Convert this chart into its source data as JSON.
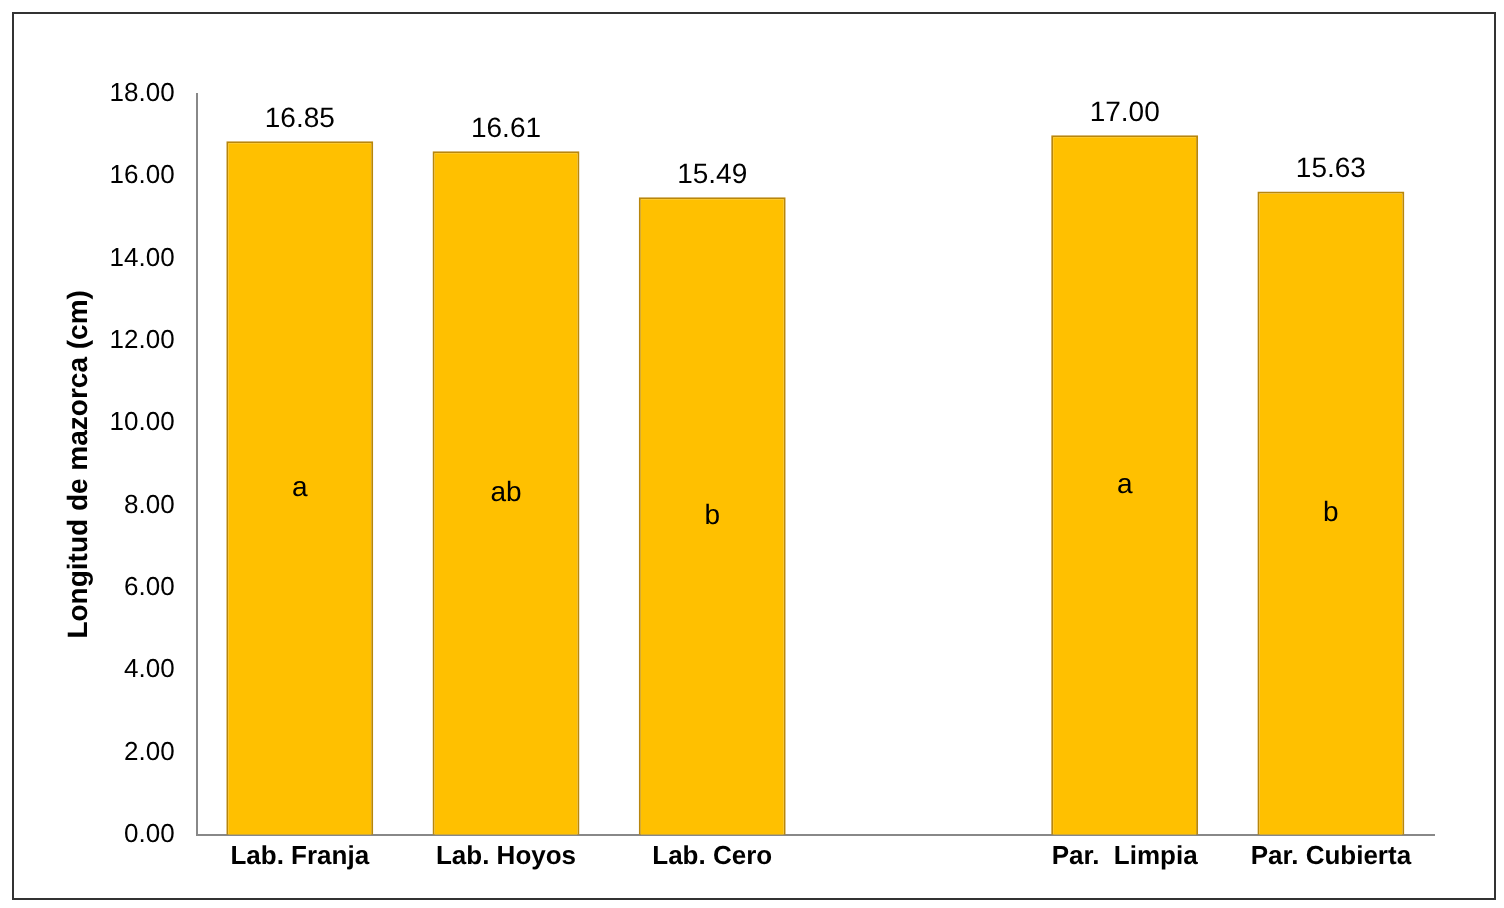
{
  "chart_data": {
    "type": "bar",
    "ylabel": "Longitud de mazorca (cm)",
    "categories": [
      "Lab. Franja",
      "Lab. Hoyos",
      "Lab. Cero",
      null,
      "Par.  Limpia",
      "Par. Cubierta"
    ],
    "values": [
      16.85,
      16.61,
      15.49,
      null,
      17.0,
      15.63
    ],
    "value_labels": [
      "16.85",
      "16.61",
      "15.49",
      null,
      "17.00",
      "15.63"
    ],
    "color": "#ffc000",
    "ylim": [
      0,
      18
    ],
    "yticks": [
      {
        "value": 0,
        "label": "0.00"
      },
      {
        "value": 2,
        "label": "2.00"
      },
      {
        "value": 4,
        "label": "4.00"
      },
      {
        "value": 6,
        "label": "6.00"
      },
      {
        "value": 8,
        "label": "8.00"
      },
      {
        "value": 10,
        "label": "10.00"
      },
      {
        "value": 12,
        "label": "12.00"
      },
      {
        "value": 14,
        "label": "14.00"
      },
      {
        "value": 16,
        "label": "16.00"
      },
      {
        "value": 18,
        "label": "18.00"
      }
    ],
    "annotations": [
      "a",
      "ab",
      "b",
      "a",
      "b"
    ],
    "grid": false,
    "legend": false
  }
}
